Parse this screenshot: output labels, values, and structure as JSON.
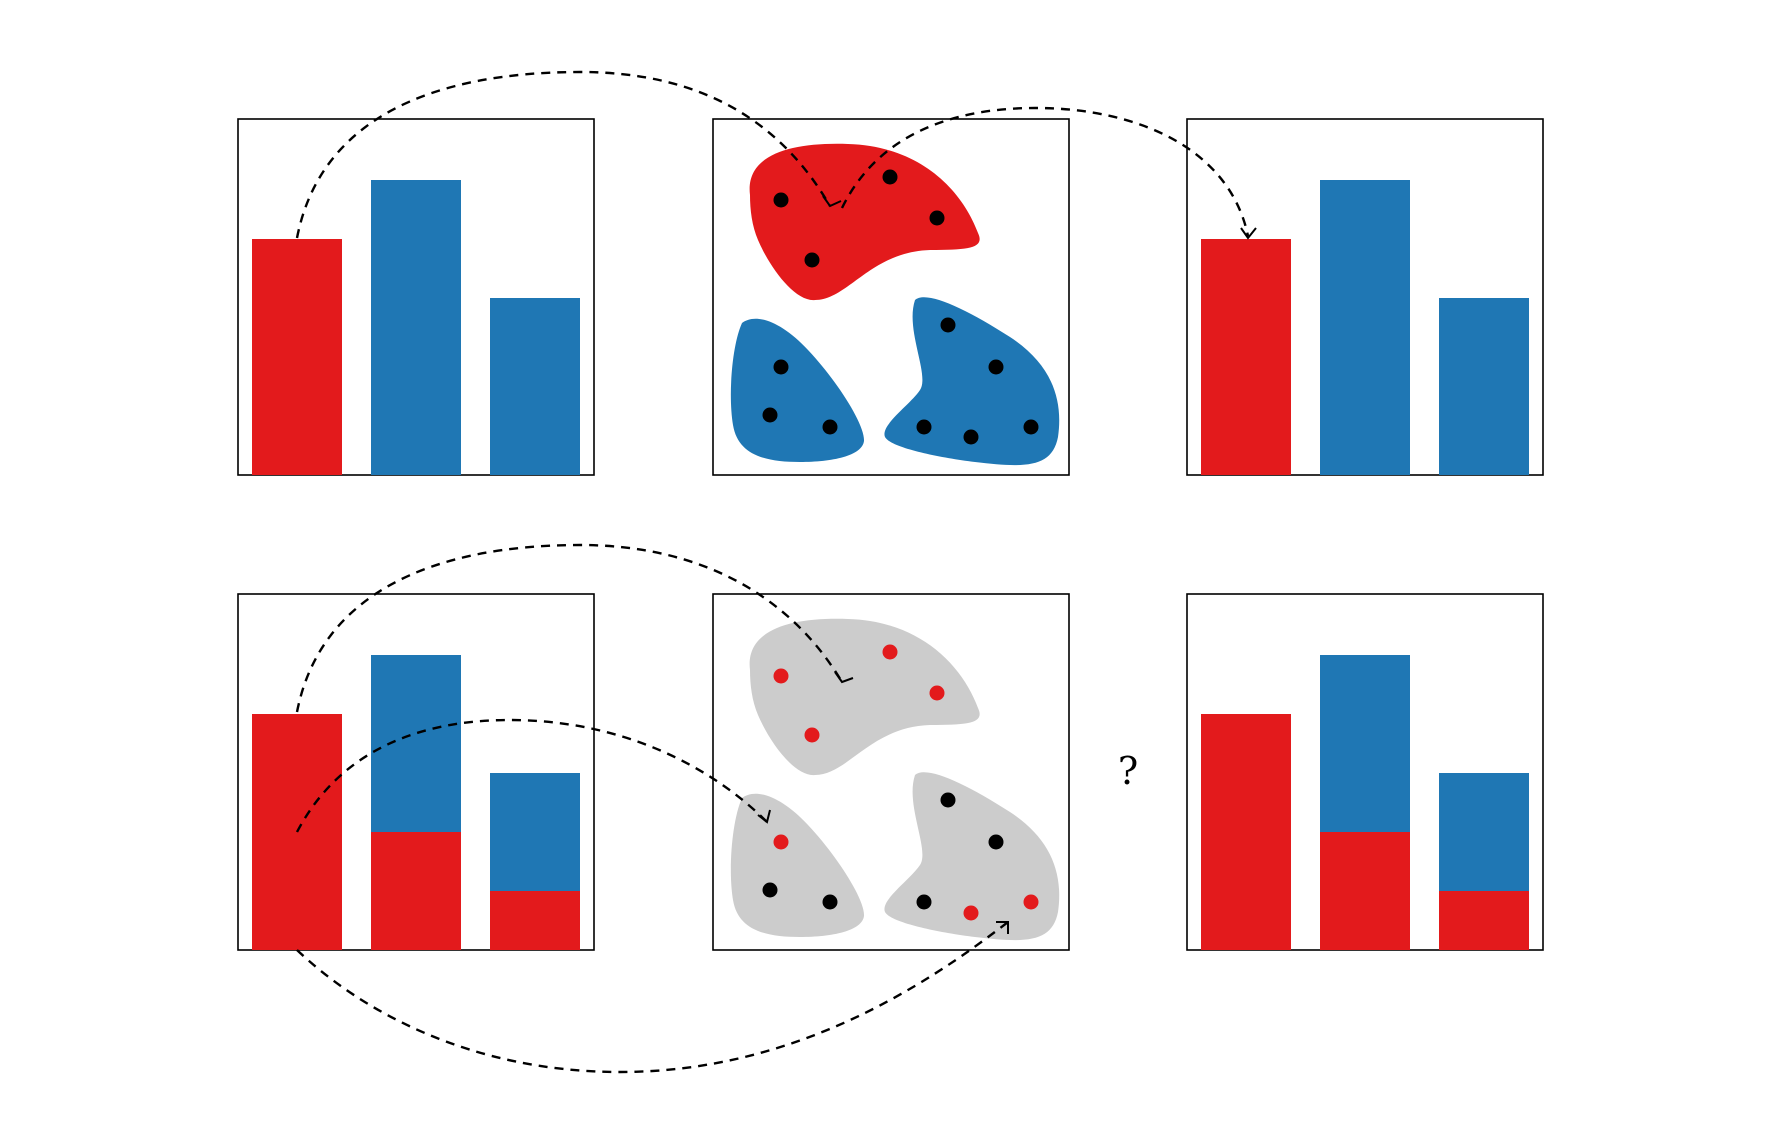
{
  "colors": {
    "red": "#e31a1c",
    "blue": "#1f77b4",
    "gray": "#cccccc",
    "black": "#000000"
  },
  "question_mark": "?",
  "top_row": {
    "left_bar_panel": {
      "bars": [
        {
          "red": 4,
          "blue": 0
        },
        {
          "red": 0,
          "blue": 5
        },
        {
          "red": 0,
          "blue": 3
        }
      ]
    },
    "cluster_panel": {
      "regions": [
        {
          "name": "region-top",
          "fill": "red",
          "points": [
            "black",
            "black",
            "black",
            "black"
          ]
        },
        {
          "name": "region-bottom-left",
          "fill": "blue",
          "points": [
            "black",
            "black",
            "black"
          ]
        },
        {
          "name": "region-bottom-right",
          "fill": "blue",
          "points": [
            "black",
            "black",
            "black",
            "black",
            "black"
          ]
        }
      ]
    },
    "right_bar_panel": {
      "bars": [
        {
          "red": 4,
          "blue": 0
        },
        {
          "red": 0,
          "blue": 5
        },
        {
          "red": 0,
          "blue": 3
        }
      ]
    }
  },
  "bottom_row": {
    "left_bar_panel": {
      "bars": [
        {
          "red": 4,
          "blue": 0
        },
        {
          "red": 2,
          "blue": 3
        },
        {
          "red": 1,
          "blue": 2
        }
      ]
    },
    "cluster_panel": {
      "regions": [
        {
          "name": "region-top",
          "fill": "gray",
          "points": [
            "red",
            "red",
            "red",
            "red"
          ]
        },
        {
          "name": "region-bottom-left",
          "fill": "gray",
          "points": [
            "red",
            "black",
            "black"
          ]
        },
        {
          "name": "region-bottom-right",
          "fill": "gray",
          "points": [
            "black",
            "black",
            "black",
            "red",
            "red"
          ]
        }
      ]
    },
    "right_bar_panel": {
      "bars": [
        {
          "red": 4,
          "blue": 0
        },
        {
          "red": 2,
          "blue": 3
        },
        {
          "red": 1,
          "blue": 2
        }
      ]
    }
  }
}
